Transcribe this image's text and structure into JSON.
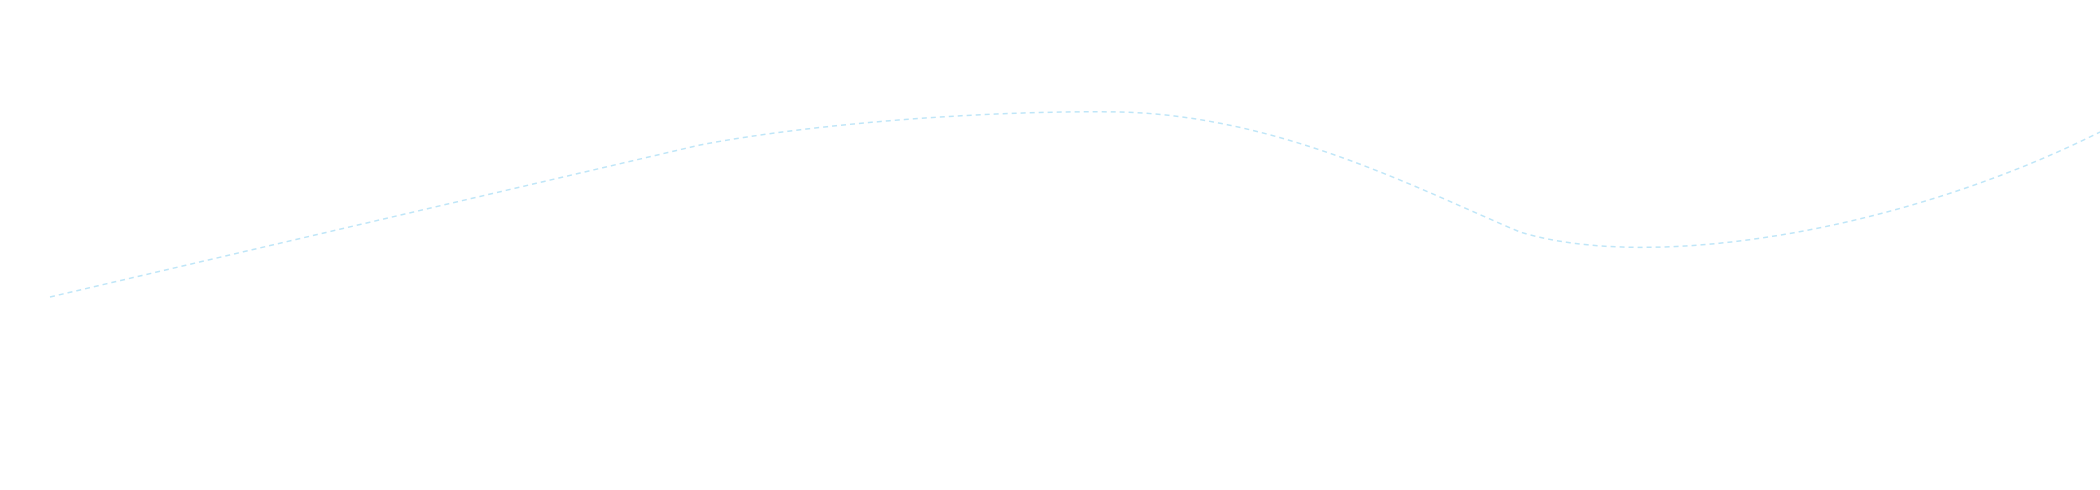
{
  "background_color": "#ffffff",
  "wave": {
    "stroke_color": "#bfe6f8",
    "style": "dashed"
  }
}
